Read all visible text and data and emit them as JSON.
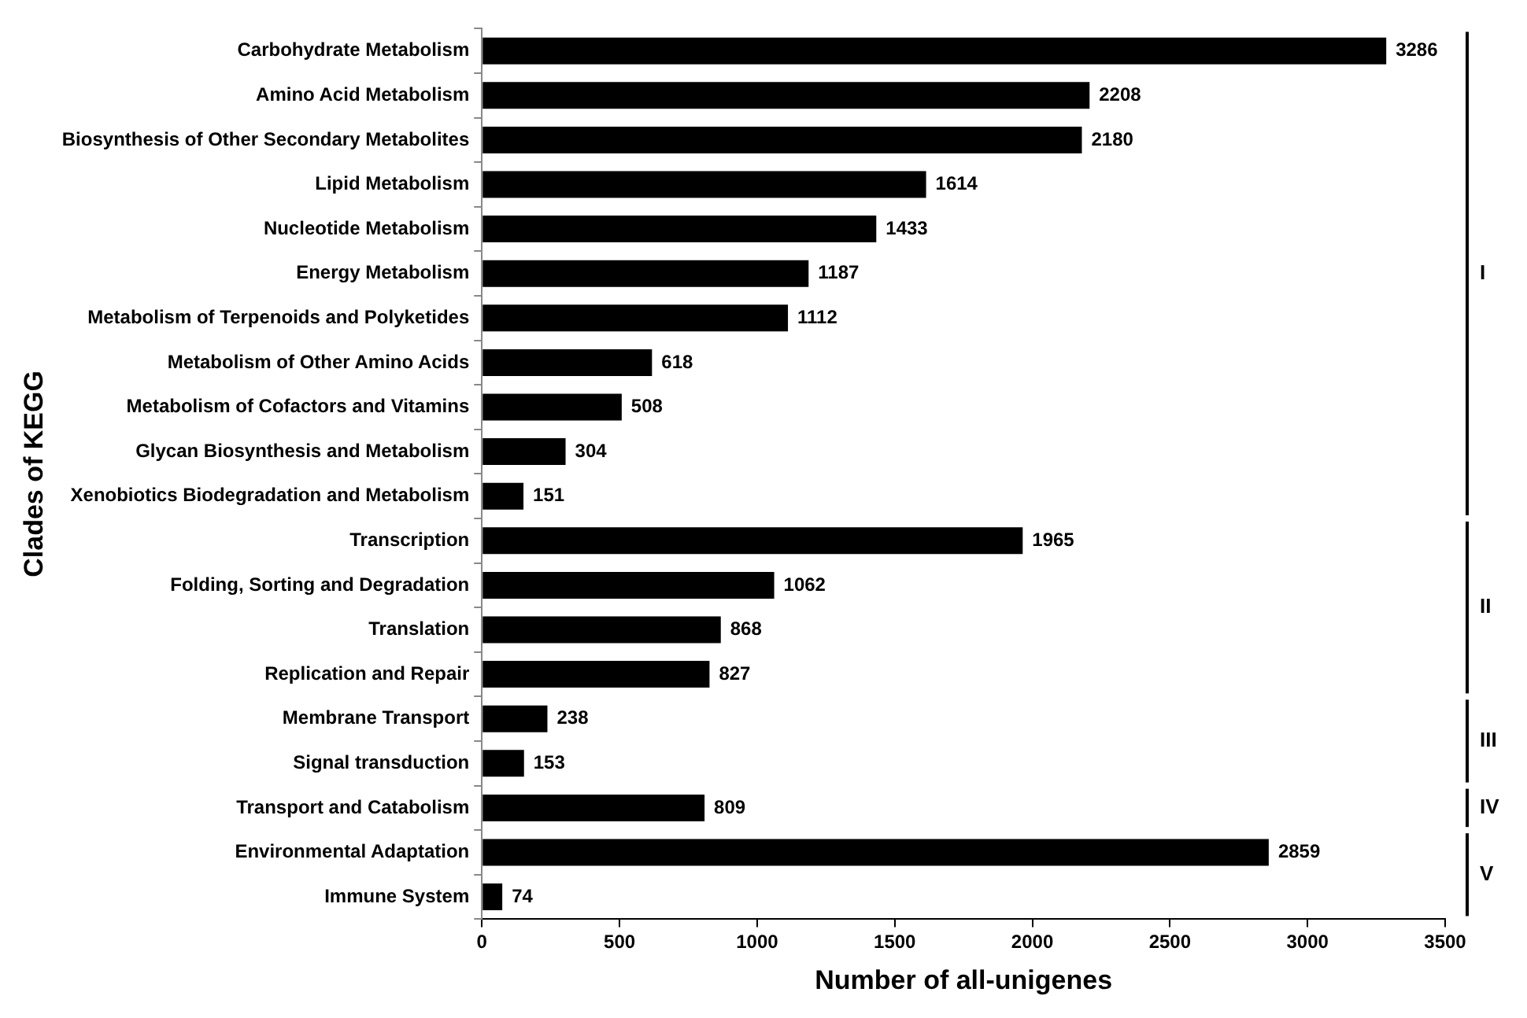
{
  "chart_data": {
    "type": "bar",
    "orientation": "horizontal",
    "xlabel": "Number of all-unigenes",
    "ylabel": "Clades of KEGG",
    "categories": [
      "Carbohydrate Metabolism",
      "Amino Acid Metabolism",
      "Biosynthesis of Other Secondary Metabolites",
      "Lipid Metabolism",
      "Nucleotide Metabolism",
      "Energy Metabolism",
      "Metabolism of Terpenoids and Polyketides",
      "Metabolism of Other Amino Acids",
      "Metabolism of Cofactors and Vitamins",
      "Glycan Biosynthesis and Metabolism",
      "Xenobiotics Biodegradation and Metabolism",
      "Transcription",
      "Folding, Sorting and Degradation",
      "Translation",
      "Replication and Repair",
      "Membrane Transport",
      "Signal transduction",
      "Transport and Catabolism",
      "Environmental Adaptation",
      "Immune System"
    ],
    "values": [
      3286,
      2208,
      2180,
      1614,
      1433,
      1187,
      1112,
      618,
      508,
      304,
      151,
      1965,
      1062,
      868,
      827,
      238,
      153,
      809,
      2859,
      74
    ],
    "color": "#000000",
    "data_labels": true,
    "xlim": [
      0,
      3500
    ],
    "xticks": [
      0,
      500,
      1000,
      1500,
      2000,
      2500,
      3000,
      3500
    ],
    "grid": false,
    "legend": false,
    "annotations": [
      "I",
      "II",
      "III",
      "IV",
      "V"
    ]
  }
}
